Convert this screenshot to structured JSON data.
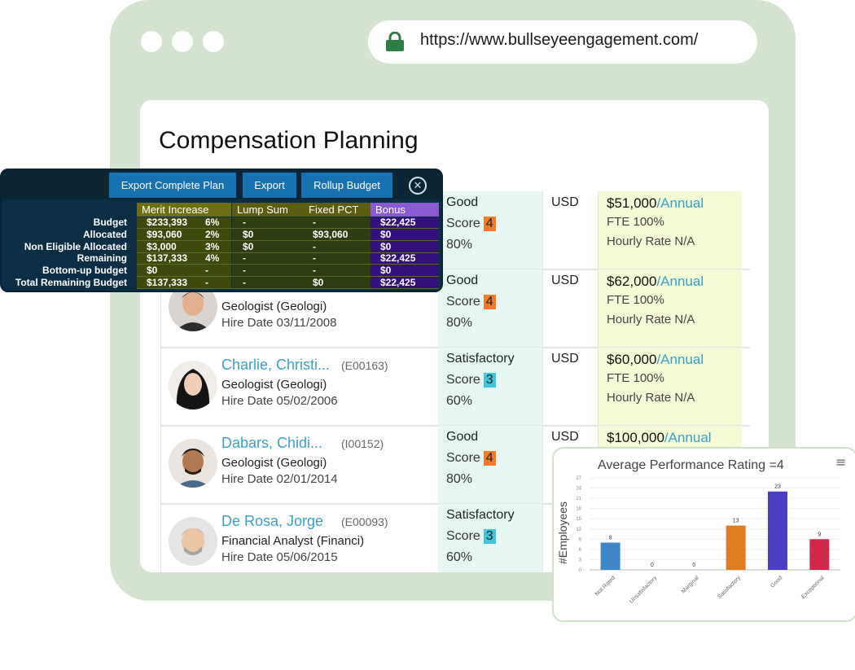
{
  "browser": {
    "url": "https://www.bullseyeengagement.com/"
  },
  "page": {
    "title": "Compensation Planning"
  },
  "employees": [
    {
      "rating": "Good",
      "score_label": "Score",
      "score": "4",
      "pct": "80%",
      "currency": "USD",
      "salary": "$51,000",
      "period": "/Annual",
      "fte": "FTE 100%",
      "hourly": "Hourly Rate N/A"
    },
    {
      "name": "",
      "id": "",
      "job": "Geologist (Geologi)",
      "hire": "Hire Date 03/11/2008",
      "rating": "Good",
      "score_label": "Score",
      "score": "4",
      "pct": "80%",
      "currency": "USD",
      "salary": "$62,000",
      "period": "/Annual",
      "fte": "FTE 100%",
      "hourly": "Hourly Rate N/A"
    },
    {
      "name": "Charlie, Christi...",
      "id": "(E00163)",
      "job": "Geologist (Geologi)",
      "hire": "Hire Date 05/02/2006",
      "rating": "Satisfactory",
      "score_label": "Score",
      "score": "3",
      "pct": "60%",
      "currency": "USD",
      "salary": "$60,000",
      "period": "/Annual",
      "fte": "FTE 100%",
      "hourly": "Hourly Rate N/A"
    },
    {
      "name": "Dabars, Chidi...",
      "id": "(I00152)",
      "job": "Geologist (Geologi)",
      "hire": "Hire Date 02/01/2014",
      "rating": "Good",
      "score_label": "Score",
      "score": "4",
      "pct": "80%",
      "currency": "USD",
      "salary": "$100,000",
      "period": "/Annual"
    },
    {
      "name": "De Rosa, Jorge",
      "id": "(E00093)",
      "job": "Financial Analyst (Financi)",
      "hire": "Hire Date 05/06/2015",
      "rating": "Satisfactory",
      "score_label": "Score",
      "score": "3",
      "pct": "60%"
    }
  ],
  "colors": {
    "good_badge": "#f07a2a",
    "satisfactory_badge": "#3fc6dd",
    "accent": "#3aa0c9"
  },
  "budget_panel": {
    "buttons": [
      "Export Complete Plan",
      "Export",
      "Rollup Budget"
    ],
    "close_icon": "close-circle-icon",
    "columns": [
      "Merit Increase",
      "Lump Sum",
      "Fixed PCT",
      "Bonus"
    ],
    "rows": [
      {
        "label": "Budget",
        "merit": "$233,393",
        "merit_pct": "6%",
        "lump": "-",
        "fixed": "-",
        "bonus": "$22,425"
      },
      {
        "label": "Allocated",
        "merit": "$93,060",
        "merit_pct": "2%",
        "lump": "$0",
        "fixed": "$93,060",
        "bonus": "$0"
      },
      {
        "label": "Non Eligible Allocated",
        "merit": "$3,000",
        "merit_pct": "3%",
        "lump": "$0",
        "fixed": "-",
        "bonus": "$0"
      },
      {
        "label": "Remaining",
        "merit": "$137,333",
        "merit_pct": "4%",
        "lump": "-",
        "fixed": "-",
        "bonus": "$22,425"
      },
      {
        "label": "Bottom-up budget",
        "merit": "$0",
        "merit_pct": "-",
        "lump": "-",
        "fixed": "-",
        "bonus": "$0"
      },
      {
        "label": "Total Remaining Budget",
        "merit": "$137,333",
        "merit_pct": "-",
        "lump": "-",
        "fixed": "$0",
        "bonus": "$22,425"
      }
    ]
  },
  "chart_data": {
    "type": "bar",
    "title": "Average Performance Rating =4",
    "ylabel": "#Employees",
    "xlabel": "",
    "categories": [
      "Not Rated",
      "Unsatisfactory",
      "Marginal",
      "Satisfactory",
      "Good",
      "Exceptional"
    ],
    "values": [
      8,
      0,
      0,
      13,
      23,
      9
    ],
    "colors": [
      "#3f86c8",
      "#3f86c8",
      "#3f86c8",
      "#e07b22",
      "#4a3fc4",
      "#d1284e"
    ],
    "ylim": [
      0,
      27
    ],
    "yticks": [
      0,
      3,
      6,
      9,
      12,
      15,
      18,
      21,
      24,
      27
    ],
    "menu_icon": "hamburger-menu-icon"
  }
}
